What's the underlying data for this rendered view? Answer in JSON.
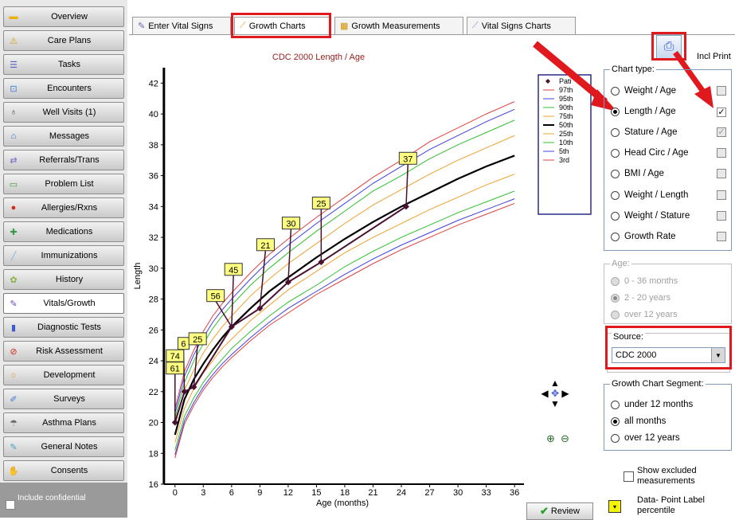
{
  "sidebar": {
    "items": [
      {
        "label": "Overview",
        "icon": "folder-icon",
        "color": "#e8b100"
      },
      {
        "label": "Care Plans",
        "icon": "care-plans-icon",
        "color": "#d4a000"
      },
      {
        "label": "Tasks",
        "icon": "checklist-icon",
        "color": "#5563c4"
      },
      {
        "label": "Encounters",
        "icon": "encounters-icon",
        "color": "#3a7bd5"
      },
      {
        "label": "Well Visits (1)",
        "icon": "stethoscope-icon",
        "color": "#4a4a4a"
      },
      {
        "label": "Messages",
        "icon": "messages-icon",
        "color": "#2a6fc9"
      },
      {
        "label": "Referrals/Trans",
        "icon": "referrals-icon",
        "color": "#7a6ac4"
      },
      {
        "label": "Problem List",
        "icon": "problem-list-icon",
        "color": "#3a9a4a"
      },
      {
        "label": "Allergies/Rxns",
        "icon": "allergies-icon",
        "color": "#d62a1a"
      },
      {
        "label": "Medications",
        "icon": "medications-icon",
        "color": "#3a9a4a"
      },
      {
        "label": "Immunizations",
        "icon": "syringe-icon",
        "color": "#8ab0e0"
      },
      {
        "label": "History",
        "icon": "history-icon",
        "color": "#8ab040"
      },
      {
        "label": "Vitals/Growth",
        "icon": "pen-icon",
        "color": "#6a4ab0"
      },
      {
        "label": "Diagnostic Tests",
        "icon": "test-tubes-icon",
        "color": "#3a5ad5"
      },
      {
        "label": "Risk Assessment",
        "icon": "no-sign-icon",
        "color": "#d62a1a"
      },
      {
        "label": "Development",
        "icon": "development-icon",
        "color": "#e0a030"
      },
      {
        "label": "Surveys",
        "icon": "surveys-icon",
        "color": "#3a7bd5"
      },
      {
        "label": "Asthma Plans",
        "icon": "asthma-icon",
        "color": "#6a6a6a"
      },
      {
        "label": "General Notes",
        "icon": "notes-icon",
        "color": "#4aa0c0"
      },
      {
        "label": "Consents",
        "icon": "consents-icon",
        "color": "#e07030"
      }
    ],
    "include_confidential": "Include confidential"
  },
  "tabs": [
    {
      "label": "Enter Vital Signs",
      "icon": "pen-icon"
    },
    {
      "label": "Growth Charts",
      "icon": "growth-chart-icon"
    },
    {
      "label": "Growth Measurements",
      "icon": "table-icon"
    },
    {
      "label": "Vital Signs Charts",
      "icon": "line-chart-icon"
    }
  ],
  "toolbar": {
    "print_label": "Incl Print",
    "print_icon": "printer-icon"
  },
  "chart_data": {
    "type": "line",
    "title": "CDC 2000 Length / Age",
    "xlabel": "Age (months)",
    "ylabel": "Length",
    "xlim": [
      -1.5,
      37
    ],
    "ylim": [
      16,
      43
    ],
    "x_ticks": [
      0,
      3,
      6,
      9,
      12,
      15,
      18,
      21,
      24,
      27,
      30,
      33,
      36
    ],
    "y_ticks": [
      16,
      18,
      20,
      22,
      24,
      26,
      28,
      30,
      32,
      34,
      36,
      38,
      40,
      42
    ],
    "legend": [
      "Pati",
      "97th",
      "95th",
      "90th",
      "75th",
      "50th",
      "25th",
      "10th",
      "5th",
      "3rd"
    ],
    "legend_position": "top-right",
    "x": [
      0,
      1,
      2,
      3,
      4,
      5,
      6,
      8,
      10,
      12,
      15,
      18,
      21,
      24,
      27,
      30,
      33,
      36
    ],
    "series": [
      {
        "name": "97th",
        "color": "#e04040",
        "values": [
          20.9,
          23.3,
          24.7,
          25.9,
          26.9,
          27.7,
          28.4,
          29.7,
          30.9,
          31.9,
          33.3,
          34.6,
          35.9,
          37.0,
          38.2,
          39.1,
          40.0,
          40.8
        ]
      },
      {
        "name": "95th",
        "color": "#4040e0",
        "values": [
          20.6,
          23.0,
          24.4,
          25.5,
          26.5,
          27.3,
          28.0,
          29.3,
          30.5,
          31.5,
          32.9,
          34.2,
          35.5,
          36.6,
          37.7,
          38.6,
          39.5,
          40.3
        ]
      },
      {
        "name": "90th",
        "color": "#30c030",
        "values": [
          20.3,
          22.6,
          24.0,
          25.1,
          26.1,
          26.9,
          27.6,
          28.9,
          30.0,
          31.0,
          32.4,
          33.7,
          35.0,
          36.0,
          37.1,
          38.0,
          38.8,
          39.6
        ]
      },
      {
        "name": "75th",
        "color": "#f0a030",
        "values": [
          19.8,
          22.1,
          23.4,
          24.5,
          25.4,
          26.2,
          26.9,
          28.2,
          29.3,
          30.3,
          31.6,
          32.9,
          34.1,
          35.1,
          36.1,
          37.0,
          37.8,
          38.6
        ]
      },
      {
        "name": "50th",
        "color": "#000000",
        "values": [
          19.2,
          21.5,
          22.8,
          23.8,
          24.7,
          25.5,
          26.2,
          27.4,
          28.5,
          29.4,
          30.7,
          31.9,
          33.0,
          34.0,
          34.9,
          35.8,
          36.6,
          37.3
        ]
      },
      {
        "name": "25th",
        "color": "#f0a030",
        "values": [
          18.7,
          20.9,
          22.2,
          23.2,
          24.0,
          24.8,
          25.4,
          26.6,
          27.6,
          28.6,
          29.8,
          31.0,
          32.0,
          32.9,
          33.8,
          34.6,
          35.4,
          36.1
        ]
      },
      {
        "name": "10th",
        "color": "#30c030",
        "values": [
          18.2,
          20.4,
          21.6,
          22.6,
          23.4,
          24.1,
          24.8,
          25.9,
          26.9,
          27.8,
          28.9,
          30.1,
          31.1,
          32.0,
          32.8,
          33.6,
          34.3,
          35.0
        ]
      },
      {
        "name": "5th",
        "color": "#4040e0",
        "values": [
          17.9,
          20.1,
          21.3,
          22.3,
          23.1,
          23.8,
          24.4,
          25.5,
          26.5,
          27.4,
          28.5,
          29.6,
          30.6,
          31.5,
          32.3,
          33.1,
          33.8,
          34.5
        ]
      },
      {
        "name": "3rd",
        "color": "#e04040",
        "values": [
          17.7,
          19.9,
          21.1,
          22.1,
          22.9,
          23.6,
          24.2,
          25.3,
          26.3,
          27.1,
          28.3,
          29.3,
          30.3,
          31.2,
          32.0,
          32.8,
          33.5,
          34.2
        ]
      }
    ],
    "patient_points": [
      {
        "x": 0,
        "y": 20.0
      },
      {
        "x": 1,
        "y": 22.0
      },
      {
        "x": 2,
        "y": 22.3
      },
      {
        "x": 6,
        "y": 26.2
      },
      {
        "x": 9,
        "y": 27.4
      },
      {
        "x": 12,
        "y": 29.1
      },
      {
        "x": 15.5,
        "y": 30.4
      },
      {
        "x": 24.5,
        "y": 34.0
      }
    ],
    "point_labels": [
      {
        "text": "61",
        "x": 0,
        "y": 23.5
      },
      {
        "text": "74",
        "x": 0,
        "y": 24.3
      },
      {
        "text": "6",
        "x": 0.9,
        "y": 25.1
      },
      {
        "text": "25",
        "x": 2.4,
        "y": 25.4
      },
      {
        "text": "56",
        "x": 4.3,
        "y": 28.2
      },
      {
        "text": "45",
        "x": 6.2,
        "y": 29.9
      },
      {
        "text": "21",
        "x": 9.6,
        "y": 31.5
      },
      {
        "text": "30",
        "x": 12.3,
        "y": 32.9
      },
      {
        "text": "25",
        "x": 15.5,
        "y": 34.2
      },
      {
        "text": "37",
        "x": 24.7,
        "y": 37.1
      }
    ]
  },
  "nav_icons": {
    "pan": "pan-arrows-icon",
    "zoom_in": "zoom-in-icon",
    "zoom_out": "zoom-out-icon"
  },
  "chart_type": {
    "legend": "Chart type:",
    "options": [
      {
        "label": "Weight / Age",
        "selected": false,
        "checkbox": ""
      },
      {
        "label": "Length / Age",
        "selected": true,
        "checkbox": "✓"
      },
      {
        "label": "Stature / Age",
        "selected": false,
        "checkbox": "✓"
      },
      {
        "label": "Head Circ / Age",
        "selected": false,
        "checkbox": ""
      },
      {
        "label": "BMI / Age",
        "selected": false,
        "checkbox": ""
      },
      {
        "label": "Weight / Length",
        "selected": false,
        "checkbox": ""
      },
      {
        "label": "Weight / Stature",
        "selected": false,
        "checkbox": ""
      },
      {
        "label": "Growth Rate",
        "selected": false,
        "checkbox": ""
      }
    ]
  },
  "age": {
    "legend": "Age:",
    "options": [
      {
        "label": "0 - 36 months",
        "selected": false
      },
      {
        "label": "2 - 20 years",
        "selected": true
      },
      {
        "label": "over 12 years",
        "selected": false
      }
    ]
  },
  "source": {
    "legend": "Source:",
    "value": "CDC 2000"
  },
  "segment": {
    "legend": "Growth Chart Segment:",
    "options": [
      {
        "label": "under 12 months",
        "selected": false
      },
      {
        "label": "all months",
        "selected": true
      },
      {
        "label": "over 12 years",
        "selected": false
      }
    ]
  },
  "show_excluded": "Show excluded measurements",
  "review_label": "Review",
  "data_point_label": "Data- Point Label percentile",
  "highlight_color": "#e0191f"
}
